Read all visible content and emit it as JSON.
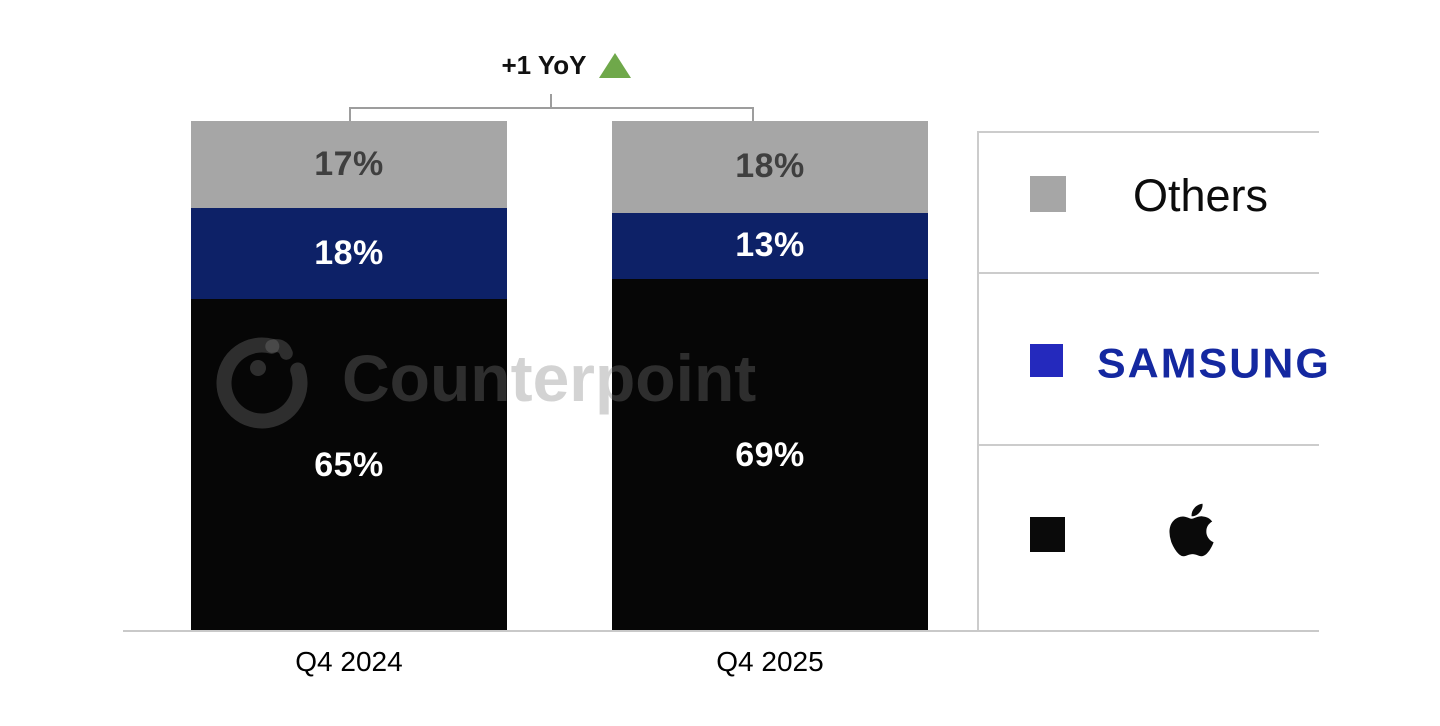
{
  "watermark": {
    "text": "Counterpoint"
  },
  "annotation": {
    "label": "+1 YoY",
    "triangle_color": "#6fa84a"
  },
  "chart_data": {
    "type": "bar",
    "stacked": true,
    "title": "",
    "categories": [
      "Q4 2024",
      "Q4 2025"
    ],
    "series": [
      {
        "name": "Others",
        "color": "#a6a6a6",
        "label_color": "#3f3f3f",
        "values": [
          17,
          18
        ]
      },
      {
        "name": "Samsung",
        "color": "#0d2167",
        "label_color": "#ffffff",
        "values": [
          18,
          13
        ]
      },
      {
        "name": "Apple",
        "color": "#060606",
        "label_color": "#ffffff",
        "values": [
          65,
          69
        ]
      }
    ],
    "value_suffix": "%",
    "annotation": "+1 YoY",
    "ylim": [
      0,
      100
    ],
    "grid": false,
    "legend_position": "right"
  },
  "legend": {
    "entries": [
      {
        "id": "others",
        "label": "Others",
        "swatch_color": "#a6a6a6"
      },
      {
        "id": "samsung",
        "label": "SAMSUNG",
        "swatch_color": "#2429bd",
        "wordmark_color": "#1428a0"
      },
      {
        "id": "apple",
        "label": "Apple",
        "swatch_color": "#0a0a0a"
      }
    ]
  },
  "colors": {
    "axis_line": "#c9c9c9",
    "bracket_line": "#9d9d9d",
    "background": "#ffffff"
  }
}
